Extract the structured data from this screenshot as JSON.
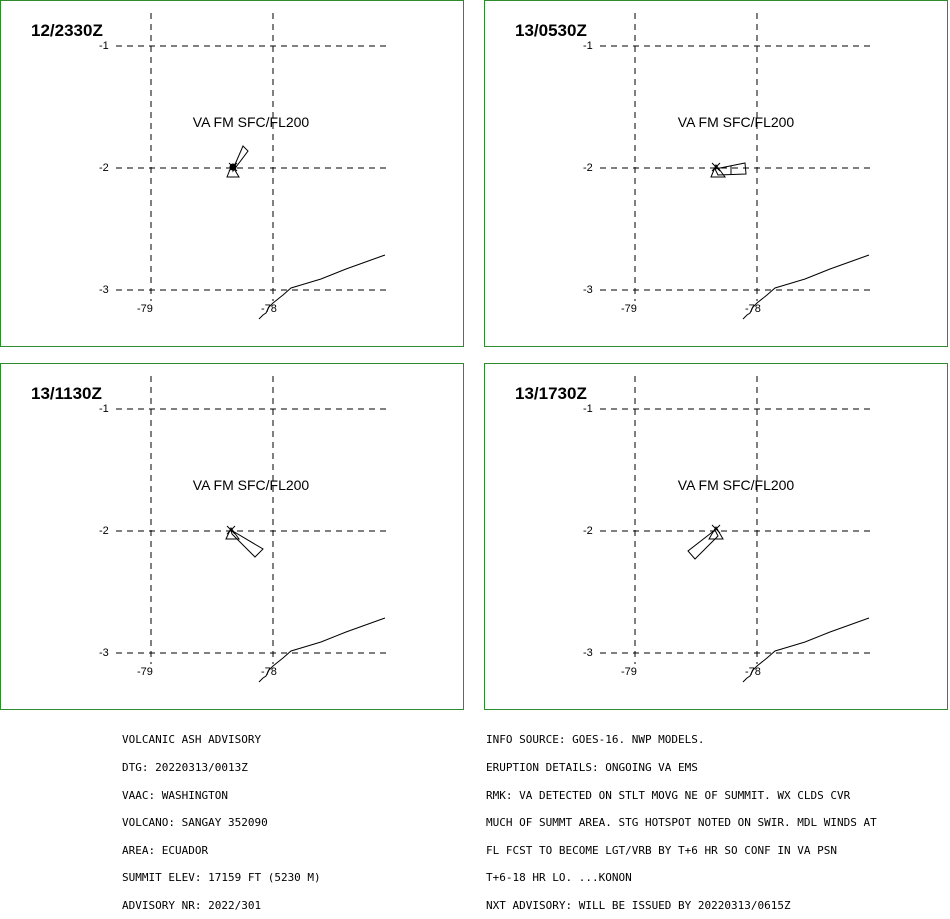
{
  "panels": [
    {
      "time": "12/2330Z",
      "va": "VA FM SFC/FL200"
    },
    {
      "time": "13/0530Z",
      "va": "VA FM SFC/FL200"
    },
    {
      "time": "13/1130Z",
      "va": "VA FM SFC/FL200"
    },
    {
      "time": "13/1730Z",
      "va": "VA FM SFC/FL200"
    }
  ],
  "axis": {
    "lat_ticks": [
      "-1",
      "-2",
      "-3"
    ],
    "lon_ticks": [
      "-79",
      "-78"
    ]
  },
  "advisory_left": [
    "VOLCANIC ASH ADVISORY",
    "DTG: 20220313/0013Z",
    "VAAC: WASHINGTON",
    "VOLCANO: SANGAY 352090",
    "AREA: ECUADOR",
    "SUMMIT ELEV: 17159 FT (5230 M)",
    "ADVISORY NR: 2022/301"
  ],
  "advisory_right": [
    "INFO SOURCE: GOES-16. NWP MODELS.",
    "ERUPTION DETAILS: ONGOING VA EMS",
    "RMK: VA DETECTED ON STLT MOVG NE OF SUMMIT. WX CLDS CVR",
    "MUCH OF SUMMT AREA. STG HOTSPOT NOTED ON SWIR. MDL WINDS AT",
    "FL FCST TO BECOME LGT/VRB BY T+6 HR SO CONF IN VA PSN",
    "T+6-18 HR LO. ...KONON",
    "NXT ADVISORY: WILL BE ISSUED BY 20220313/0615Z"
  ],
  "colors": {
    "frame": "#2e8b2e",
    "lines": "#000000"
  }
}
